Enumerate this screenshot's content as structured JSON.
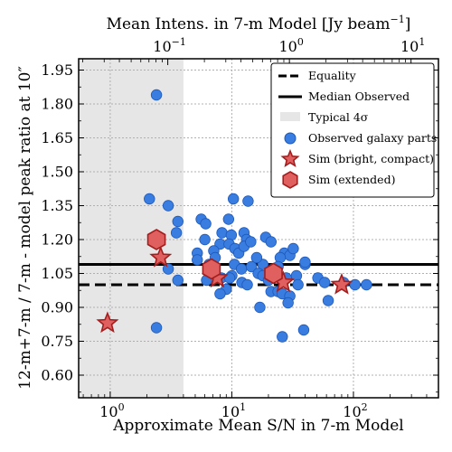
{
  "chart_data": {
    "type": "scatter",
    "xlabel": "Approximate Mean S/N in 7-m Model",
    "x2label": "Mean Intens. in 7-m Model [Jy beam",
    "x2label_sup": "−1",
    "x2label_close": "]",
    "ylabel": "12-m+7-m / 7-m - model peak ratio at 10″",
    "xscale": "log",
    "xlim": [
      0.55,
      500
    ],
    "ylim": [
      0.5,
      2.0
    ],
    "x2lim": [
      0.0185,
      16.8
    ],
    "grid": true,
    "legend_position": "top-right",
    "x_ticks": [
      {
        "value": 1,
        "base": "10",
        "exp": "0"
      },
      {
        "value": 10,
        "base": "10",
        "exp": "1"
      },
      {
        "value": 100,
        "base": "10",
        "exp": "2"
      }
    ],
    "x2_ticks": [
      {
        "value": 0.1,
        "base": "10",
        "exp": "−1"
      },
      {
        "value": 1,
        "base": "10",
        "exp": "0"
      },
      {
        "value": 10,
        "base": "10",
        "exp": "1"
      }
    ],
    "y_ticks": [
      "0.60",
      "0.75",
      "0.90",
      "1.05",
      "1.20",
      "1.35",
      "1.50",
      "1.65",
      "1.80",
      "1.95"
    ],
    "shaded_region": {
      "x": [
        0.55,
        4.0
      ],
      "label": "Typical 4σ",
      "color": "#e6e6e6"
    },
    "equality": {
      "y": 1.0,
      "label": "Equality"
    },
    "median_observed": {
      "y": 1.09,
      "label": "Median Observed"
    },
    "colors": {
      "observed": "#3a7de0",
      "observed_edge": "#1c57b8",
      "sim_fill": "#e06060",
      "sim_edge": "#a31f1f"
    },
    "series": [
      {
        "name": "Observed galaxy parts",
        "marker": "circle",
        "points": [
          [
            2.4,
            1.84
          ],
          [
            2.1,
            1.38
          ],
          [
            3.0,
            1.35
          ],
          [
            5.6,
            1.29
          ],
          [
            3.6,
            1.28
          ],
          [
            6.1,
            1.27
          ],
          [
            10.3,
            1.38
          ],
          [
            13.6,
            1.37
          ],
          [
            3.5,
            1.23
          ],
          [
            9.4,
            1.29
          ],
          [
            8.3,
            1.23
          ],
          [
            9.9,
            1.22
          ],
          [
            12.6,
            1.23
          ],
          [
            13.2,
            1.2
          ],
          [
            6.0,
            1.2
          ],
          [
            8.0,
            1.18
          ],
          [
            7.1,
            1.15
          ],
          [
            5.2,
            1.14
          ],
          [
            7.3,
            1.12
          ],
          [
            9.5,
            1.18
          ],
          [
            10.6,
            1.16
          ],
          [
            11.4,
            1.14
          ],
          [
            12.6,
            1.17
          ],
          [
            14.3,
            1.19
          ],
          [
            19.0,
            1.21
          ],
          [
            21.0,
            1.19
          ],
          [
            27.0,
            1.14
          ],
          [
            30.0,
            1.13
          ],
          [
            25.0,
            1.12
          ],
          [
            32.0,
            1.16
          ],
          [
            40.0,
            1.09
          ],
          [
            18.0,
            1.09
          ],
          [
            3.0,
            1.07
          ],
          [
            5.2,
            1.11
          ],
          [
            6.5,
            1.09
          ],
          [
            10.5,
            1.09
          ],
          [
            12.0,
            1.07
          ],
          [
            14.5,
            1.08
          ],
          [
            16.5,
            1.05
          ],
          [
            18.0,
            1.04
          ],
          [
            22.0,
            1.07
          ],
          [
            24.0,
            1.08
          ],
          [
            10.0,
            1.04
          ],
          [
            8.2,
            1.03
          ],
          [
            9.6,
            1.03
          ],
          [
            3.6,
            1.02
          ],
          [
            6.2,
            1.02
          ],
          [
            12.1,
            1.01
          ],
          [
            13.4,
            1.0
          ],
          [
            20.0,
            1.02
          ],
          [
            28.0,
            1.03
          ],
          [
            34.0,
            1.04
          ],
          [
            51.0,
            1.03
          ],
          [
            58.0,
            1.01
          ],
          [
            83.0,
            1.01
          ],
          [
            103.0,
            1.0
          ],
          [
            128.0,
            1.0
          ],
          [
            9.0,
            0.98
          ],
          [
            8.0,
            0.96
          ],
          [
            21.0,
            0.97
          ],
          [
            24.0,
            0.97
          ],
          [
            26.0,
            0.96
          ],
          [
            30.0,
            0.95
          ],
          [
            29.0,
            0.92
          ],
          [
            62.0,
            0.93
          ],
          [
            17.0,
            0.9
          ],
          [
            39.0,
            0.8
          ],
          [
            26.0,
            0.77
          ],
          [
            2.4,
            0.81
          ],
          [
            40.0,
            1.1
          ],
          [
            35.0,
            1.0
          ],
          [
            16.0,
            1.12
          ]
        ]
      },
      {
        "name": "Sim (bright, compact)",
        "marker": "star",
        "points": [
          [
            0.95,
            0.83
          ],
          [
            2.6,
            1.12
          ],
          [
            7.6,
            1.03
          ],
          [
            26.5,
            1.01
          ],
          [
            80.0,
            1.0
          ]
        ]
      },
      {
        "name": "Sim (extended)",
        "marker": "hexagon",
        "points": [
          [
            2.4,
            1.2
          ],
          [
            6.8,
            1.07
          ],
          [
            22.0,
            1.05
          ]
        ]
      }
    ]
  }
}
